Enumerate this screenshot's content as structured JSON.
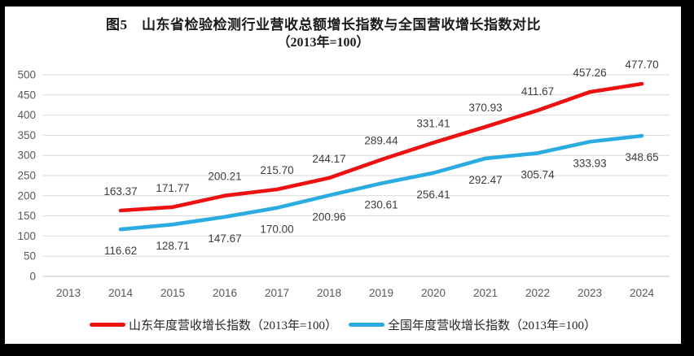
{
  "figure": {
    "title_line1": "图5　山东省检验检测行业营收总额增长指数与全国营收增长指数对比",
    "title_line2": "（2013年=100）"
  },
  "chart_data": {
    "type": "line",
    "title": "图5 山东省检验检测行业营收总额增长指数与全国营收增长指数对比（2013年=100）",
    "categories": [
      "2013",
      "2014",
      "2015",
      "2016",
      "2017",
      "2018",
      "2019",
      "2020",
      "2021",
      "2022",
      "2023",
      "2024"
    ],
    "ylim": [
      0,
      500
    ],
    "ytick_step": 50,
    "grid": true,
    "legend_position": "bottom",
    "series": [
      {
        "name": "山东年度营收增长指数（2013年=100）",
        "color": "#ee1111",
        "first_category": "2014",
        "label_position": "above",
        "values": [
          163.37,
          171.77,
          200.21,
          215.7,
          244.17,
          289.44,
          331.41,
          370.93,
          411.67,
          457.26,
          477.7
        ]
      },
      {
        "name": "全国年度营收增长指数（2013年=100）",
        "color": "#2aabe2",
        "first_category": "2014",
        "label_position": "below",
        "values": [
          116.62,
          128.71,
          147.67,
          170.0,
          200.96,
          230.61,
          256.41,
          292.47,
          305.74,
          333.93,
          348.65
        ]
      }
    ],
    "colors": {
      "gridline": "#d9d9d9",
      "axis_line": "#c6c6c6",
      "tick_label": "#595959",
      "data_label": "#3d3d3d"
    }
  }
}
